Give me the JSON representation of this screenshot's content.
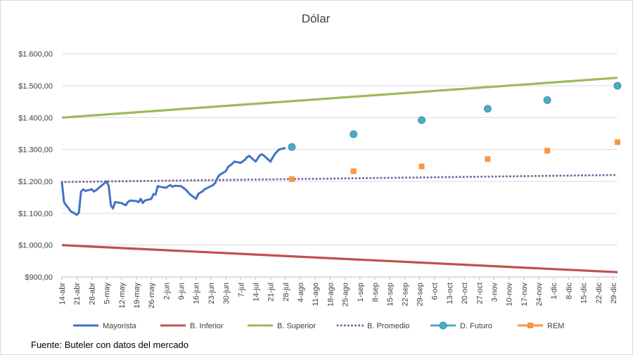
{
  "chart_data": {
    "type": "line",
    "title": "Dólar",
    "source": "Fuente: Buteler con datos del mercado",
    "ylim": [
      900,
      1650
    ],
    "y_ticks": [
      900,
      1000,
      1100,
      1200,
      1300,
      1400,
      1500,
      1600
    ],
    "y_tick_labels": [
      "$900,00",
      "$1.000,00",
      "$1.100,00",
      "$1.200,00",
      "$1.300,00",
      "$1.400,00",
      "$1.500,00",
      "$1.600,00"
    ],
    "x_tick_labels": [
      "14-abr",
      "21-abr",
      "28-abr",
      "5-may",
      "12-may",
      "19-may",
      "26-may",
      "2-jun",
      "9-jun",
      "16-jun",
      "23-jun",
      "30-jun",
      "7-jul",
      "14-jul",
      "21-jul",
      "28-jul",
      "4-ago",
      "11-ago",
      "18-ago",
      "25-ago",
      "1-sep",
      "8-sep",
      "15-sep",
      "22-sep",
      "29-sep",
      "6-oct",
      "13-oct",
      "20-oct",
      "27-oct",
      "3-nov",
      "10-nov",
      "17-nov",
      "24-nov",
      "1-dic",
      "8-dic",
      "15-dic",
      "22-dic",
      "29-dic"
    ],
    "x_domain": [
      "14-abr",
      "31-dic"
    ],
    "grid": "horizontal",
    "legend_position": "bottom",
    "series": [
      {
        "name": "Mayorista",
        "style": "line",
        "color": "#4472c4",
        "points": [
          [
            "14-abr",
            1198
          ],
          [
            "15-abr",
            1135
          ],
          [
            "16-abr",
            1125
          ],
          [
            "17-abr",
            1117
          ],
          [
            "18-abr",
            1107
          ],
          [
            "21-abr",
            1095
          ],
          [
            "22-abr",
            1102
          ],
          [
            "23-abr",
            1168
          ],
          [
            "24-abr",
            1175
          ],
          [
            "25-abr",
            1170
          ],
          [
            "28-abr",
            1175
          ],
          [
            "29-abr",
            1168
          ],
          [
            "30-abr",
            1172
          ],
          [
            "2-may",
            1183
          ],
          [
            "5-may",
            1200
          ],
          [
            "6-may",
            1185
          ],
          [
            "7-may",
            1125
          ],
          [
            "8-may",
            1115
          ],
          [
            "9-may",
            1135
          ],
          [
            "12-may",
            1132
          ],
          [
            "13-may",
            1128
          ],
          [
            "14-may",
            1125
          ],
          [
            "15-may",
            1135
          ],
          [
            "16-may",
            1140
          ],
          [
            "19-may",
            1138
          ],
          [
            "20-may",
            1135
          ],
          [
            "21-may",
            1145
          ],
          [
            "22-may",
            1132
          ],
          [
            "23-may",
            1140
          ],
          [
            "26-may",
            1145
          ],
          [
            "27-may",
            1160
          ],
          [
            "28-may",
            1158
          ],
          [
            "29-may",
            1185
          ],
          [
            "30-may",
            1183
          ],
          [
            "2-jun",
            1180
          ],
          [
            "3-jun",
            1185
          ],
          [
            "4-jun",
            1188
          ],
          [
            "5-jun",
            1183
          ],
          [
            "6-jun",
            1186
          ],
          [
            "9-jun",
            1185
          ],
          [
            "10-jun",
            1180
          ],
          [
            "11-jun",
            1175
          ],
          [
            "12-jun",
            1168
          ],
          [
            "13-jun",
            1160
          ],
          [
            "16-jun",
            1145
          ],
          [
            "17-jun",
            1160
          ],
          [
            "18-jun",
            1165
          ],
          [
            "19-jun",
            1168
          ],
          [
            "20-jun",
            1175
          ],
          [
            "23-jun",
            1185
          ],
          [
            "24-jun",
            1188
          ],
          [
            "25-jun",
            1195
          ],
          [
            "26-jun",
            1210
          ],
          [
            "27-jun",
            1220
          ],
          [
            "30-jun",
            1232
          ],
          [
            "1-jul",
            1245
          ],
          [
            "2-jul",
            1250
          ],
          [
            "3-jul",
            1255
          ],
          [
            "4-jul",
            1262
          ],
          [
            "7-jul",
            1258
          ],
          [
            "8-jul",
            1263
          ],
          [
            "9-jul",
            1268
          ],
          [
            "10-jul",
            1276
          ],
          [
            "11-jul",
            1280
          ],
          [
            "14-jul",
            1262
          ],
          [
            "15-jul",
            1272
          ],
          [
            "16-jul",
            1282
          ],
          [
            "17-jul",
            1285
          ],
          [
            "18-jul",
            1280
          ],
          [
            "21-jul",
            1262
          ],
          [
            "22-jul",
            1275
          ],
          [
            "23-jul",
            1285
          ],
          [
            "24-jul",
            1293
          ],
          [
            "25-jul",
            1300
          ],
          [
            "28-jul",
            1305
          ]
        ]
      },
      {
        "name": "B. Inferior",
        "style": "line",
        "color": "#c0504d",
        "points": [
          [
            "14-abr",
            1000
          ],
          [
            "31-dic",
            915
          ]
        ]
      },
      {
        "name": "B. Superior",
        "style": "line",
        "color": "#9bbb59",
        "points": [
          [
            "14-abr",
            1400
          ],
          [
            "31-dic",
            1525
          ]
        ]
      },
      {
        "name": "B. Promedio",
        "style": "dotted",
        "color": "#8064a2",
        "points": [
          [
            "14-abr",
            1198
          ],
          [
            "31-dic",
            1220
          ]
        ]
      },
      {
        "name": "D. Futuro",
        "style": "circle",
        "color": "#4bacc6",
        "points": [
          [
            "31-jul",
            1308
          ],
          [
            "29-ago",
            1348
          ],
          [
            "30-sep",
            1392
          ],
          [
            "31-oct",
            1428
          ],
          [
            "28-nov",
            1455
          ],
          [
            "31-dic",
            1500
          ]
        ]
      },
      {
        "name": "REM",
        "style": "square",
        "color": "#f79646",
        "points": [
          [
            "31-jul",
            1207
          ],
          [
            "29-ago",
            1232
          ],
          [
            "30-sep",
            1247
          ],
          [
            "31-oct",
            1270
          ],
          [
            "28-nov",
            1296
          ],
          [
            "31-dic",
            1323
          ]
        ]
      }
    ]
  }
}
